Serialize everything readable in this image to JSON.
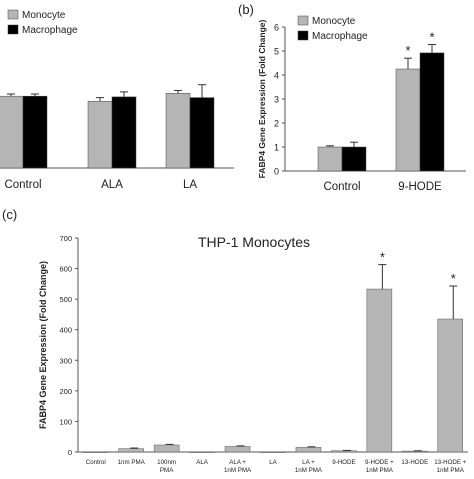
{
  "colors": {
    "monocyte": "#b5b5b5",
    "macrophage": "#000000",
    "axis": "#555555",
    "err": "#333333"
  },
  "chart_data": [
    {
      "type": "bar",
      "panel_label": "",
      "title": "",
      "categories": [
        "Control",
        "ALA",
        "LA"
      ],
      "series": [
        {
          "name": "Monocyte",
          "values": [
            1.0,
            0.93,
            1.04
          ]
        },
        {
          "name": "Macrophage",
          "values": [
            1.0,
            0.99,
            0.98
          ]
        }
      ],
      "errors": [
        [
          0.03,
          0.05,
          0.04
        ],
        [
          0.03,
          0.07,
          0.18
        ]
      ],
      "ylim": [
        0,
        2.2
      ],
      "legend": "top-left"
    },
    {
      "type": "bar",
      "panel_label": "(b)",
      "title": "",
      "categories": [
        "Control",
        "9-HODE"
      ],
      "series": [
        {
          "name": "Monocyte",
          "values": [
            1.0,
            4.25
          ]
        },
        {
          "name": "Macrophage",
          "values": [
            1.0,
            4.92
          ]
        }
      ],
      "errors": [
        [
          0.05,
          0.45
        ],
        [
          0.2,
          0.35
        ]
      ],
      "ylabel": "FABP4 Gene Expression (Fold Change)",
      "ylim": [
        0,
        6
      ],
      "yticks": [
        "0",
        "1",
        "2",
        "3",
        "4",
        "5",
        "6"
      ],
      "significance": [
        "",
        "*"
      ],
      "legend": "top-left"
    },
    {
      "type": "bar",
      "panel_label": "(c)",
      "title": "THP-1 Monocytes",
      "categories": [
        "Control",
        "1nm PMA",
        "100nm PMA",
        "ALA",
        "ALA + 1nM PMA",
        "LA",
        "LA + 1nM PMA",
        "9-HODE",
        "9-HODE + 1nM PMA",
        "13-HODE",
        "13-HODE + 1nM PMA"
      ],
      "values": [
        0.5,
        11,
        23,
        0.5,
        18,
        0.5,
        15,
        4,
        533,
        3,
        435
      ],
      "errors": [
        0,
        2,
        2,
        0,
        2,
        0,
        2,
        1,
        80,
        1,
        108
      ],
      "significance": [
        "",
        "",
        "",
        "",
        "",
        "",
        "",
        "",
        "*",
        "",
        "*"
      ],
      "ylabel": "FABP4 Gene Expression (Fold Change)",
      "ylim": [
        0,
        700
      ],
      "yticks": [
        "0",
        "100",
        "200",
        "300",
        "400",
        "500",
        "600",
        "700"
      ],
      "legend": "none"
    }
  ]
}
